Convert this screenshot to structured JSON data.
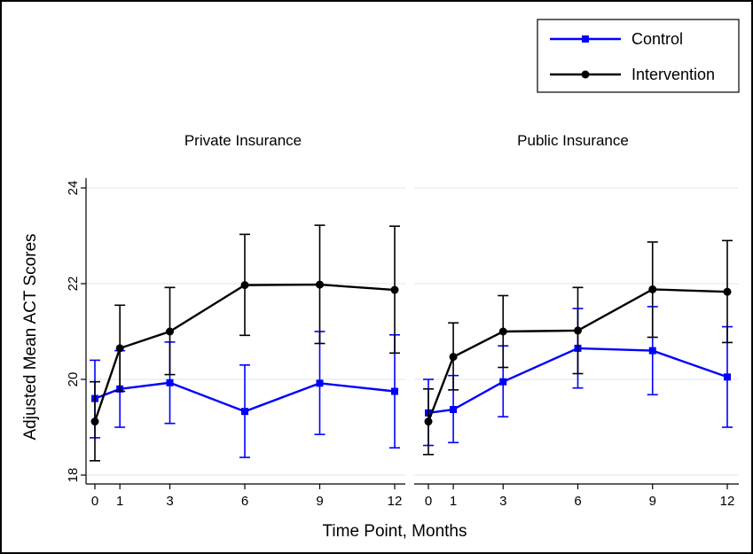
{
  "chart_data": {
    "type": "line",
    "xlabel": "Time Point, Months",
    "ylabel": "Adjusted Mean ACT Scores",
    "x_ticks": [
      "0",
      "1",
      "3",
      "6",
      "9",
      "12"
    ],
    "y_ticks": [
      "18",
      "20",
      "22",
      "24"
    ],
    "x": [
      0,
      1,
      3,
      6,
      9,
      12
    ],
    "ylim": [
      18,
      24
    ],
    "legend": {
      "placement": "top-right",
      "entries": [
        "Control",
        "Intervention"
      ]
    },
    "colors": {
      "Control": "#0000ff",
      "Intervention": "#000000"
    },
    "panels": [
      {
        "title": "Private Insurance",
        "series": [
          {
            "name": "Control",
            "values": [
              19.6,
              19.8,
              19.93,
              19.33,
              19.92,
              19.75
            ],
            "ci_low": [
              18.78,
              19.0,
              19.08,
              18.37,
              18.85,
              18.57
            ],
            "ci_high": [
              20.4,
              20.6,
              20.78,
              20.3,
              21.0,
              20.93
            ]
          },
          {
            "name": "Intervention",
            "values": [
              19.12,
              20.65,
              21.0,
              21.97,
              21.98,
              21.87
            ],
            "ci_low": [
              18.3,
              19.75,
              20.1,
              20.92,
              20.75,
              20.55
            ],
            "ci_high": [
              19.95,
              21.55,
              21.92,
              23.03,
              23.22,
              23.2
            ]
          }
        ]
      },
      {
        "title": "Public Insurance",
        "series": [
          {
            "name": "Control",
            "values": [
              19.3,
              19.37,
              19.95,
              20.65,
              20.6,
              20.05
            ],
            "ci_low": [
              18.62,
              18.68,
              19.22,
              19.82,
              19.68,
              19.0
            ],
            "ci_high": [
              20.0,
              20.08,
              20.7,
              21.48,
              21.52,
              21.1
            ]
          },
          {
            "name": "Intervention",
            "values": [
              19.12,
              20.47,
              21.0,
              21.02,
              21.88,
              21.83
            ],
            "ci_low": [
              18.43,
              19.78,
              20.25,
              20.12,
              20.88,
              20.77
            ],
            "ci_high": [
              19.8,
              21.18,
              21.75,
              21.92,
              22.87,
              22.9
            ]
          }
        ]
      }
    ]
  }
}
